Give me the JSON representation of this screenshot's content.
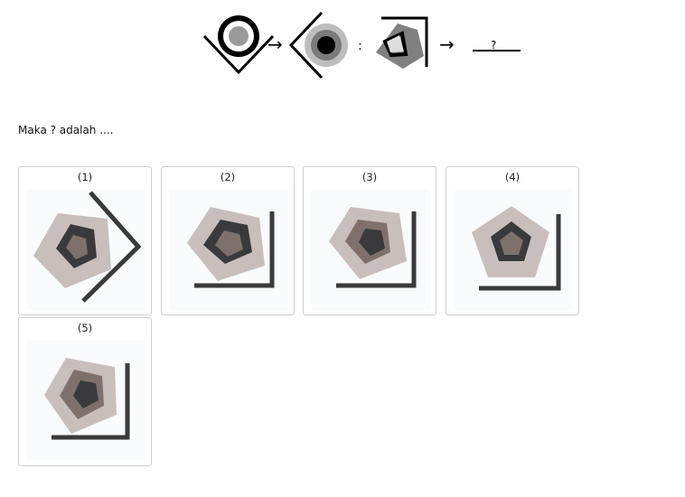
{
  "question": {
    "colon_symbol": ":",
    "arrow_symbol_1": "→",
    "arrow_symbol_2": "→",
    "answer_blank": "?"
  },
  "prompt": "Maka ? adalah ....",
  "options": [
    {
      "label": "(1)"
    },
    {
      "label": "(2)"
    },
    {
      "label": "(3)"
    },
    {
      "label": "(4)"
    },
    {
      "label": "(5)"
    }
  ],
  "colors": {
    "light_gray": "#c8bfbd",
    "mid_gray": "#7e716c",
    "dark": "#3a3a3d",
    "bracket": "#3a3a3d",
    "option_bg": "#fafbfd"
  }
}
